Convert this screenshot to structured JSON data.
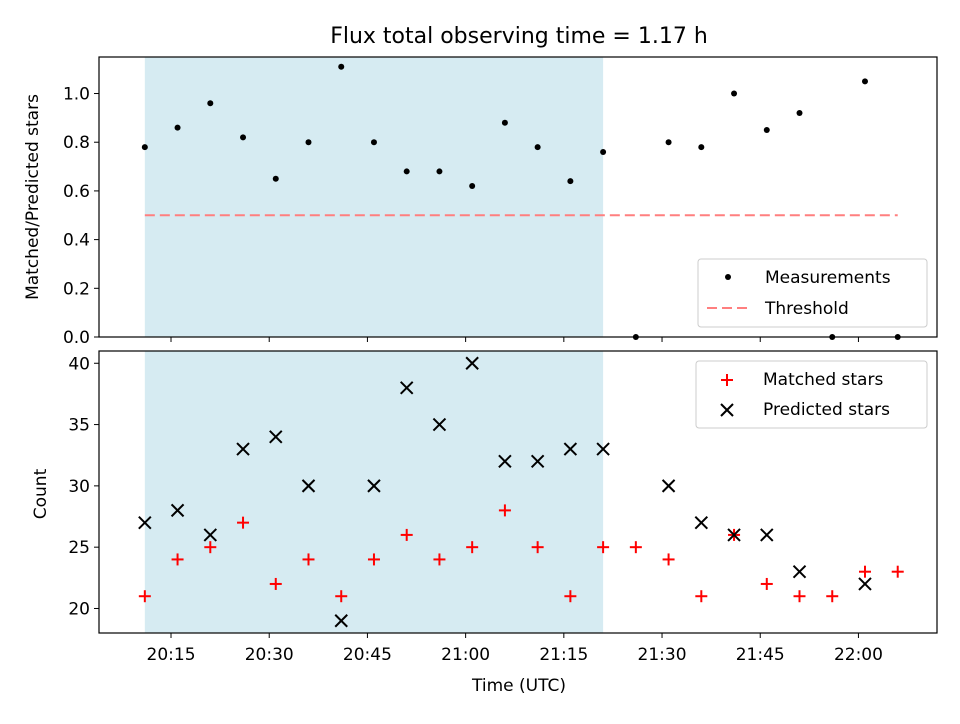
{
  "title": "Flux total observing time = 1.17 h",
  "colors": {
    "shade": "#add8e6",
    "measurement": "#000000",
    "threshold": "#ff7f7f",
    "matched": "#ff0000",
    "predicted": "#000000"
  },
  "chart_data": [
    {
      "type": "scatter",
      "title": "Flux total observing time = 1.17 h",
      "xlabel": "",
      "ylabel": "Matched/Predicted stars",
      "xlim": [
        "20:04",
        "22:12"
      ],
      "ylim": [
        0,
        1.15
      ],
      "yticks": [
        0.0,
        0.2,
        0.4,
        0.6,
        0.8,
        1.0
      ],
      "ytick_labels": [
        "0.0",
        "0.2",
        "0.4",
        "0.6",
        "0.8",
        "1.0"
      ],
      "shaded_span": [
        "20:11",
        "21:21"
      ],
      "legend_position": "lower right",
      "legend": [
        "Measurements",
        "Threshold"
      ],
      "series": [
        {
          "name": "Measurements",
          "marker": "dot",
          "x": [
            "20:11",
            "20:16",
            "20:21",
            "20:26",
            "20:31",
            "20:36",
            "20:41",
            "20:46",
            "20:51",
            "20:56",
            "21:01",
            "21:06",
            "21:11",
            "21:16",
            "21:21",
            "21:26",
            "21:31",
            "21:36",
            "21:41",
            "21:46",
            "21:51",
            "21:56",
            "22:01",
            "22:06"
          ],
          "y": [
            0.78,
            0.86,
            0.96,
            0.82,
            0.65,
            0.8,
            1.11,
            0.8,
            0.68,
            0.68,
            0.62,
            0.88,
            0.78,
            0.64,
            0.76,
            0.0,
            0.8,
            0.78,
            1.0,
            0.85,
            0.92,
            0.0,
            1.05,
            0.0
          ]
        },
        {
          "name": "Threshold",
          "marker": "dashed-line",
          "x": [
            "20:11",
            "22:06"
          ],
          "y": [
            0.5,
            0.5
          ]
        }
      ]
    },
    {
      "type": "scatter",
      "title": "",
      "xlabel": "Time (UTC)",
      "ylabel": "Count",
      "xlim": [
        "20:04",
        "22:12"
      ],
      "ylim": [
        18,
        41
      ],
      "xticks": [
        "20:15",
        "20:30",
        "20:45",
        "21:00",
        "21:15",
        "21:30",
        "21:45",
        "22:00"
      ],
      "yticks": [
        20,
        25,
        30,
        35,
        40
      ],
      "ytick_labels": [
        "20",
        "25",
        "30",
        "35",
        "40"
      ],
      "shaded_span": [
        "20:11",
        "21:21"
      ],
      "legend_position": "upper right",
      "legend": [
        "Matched stars",
        "Predicted stars"
      ],
      "series": [
        {
          "name": "Matched stars",
          "marker": "plus",
          "x": [
            "20:11",
            "20:16",
            "20:21",
            "20:26",
            "20:31",
            "20:36",
            "20:41",
            "20:46",
            "20:51",
            "20:56",
            "21:01",
            "21:06",
            "21:11",
            "21:16",
            "21:21",
            "21:26",
            "21:31",
            "21:36",
            "21:41",
            "21:46",
            "21:51",
            "21:56",
            "22:01",
            "22:06"
          ],
          "y": [
            21,
            24,
            25,
            27,
            22,
            24,
            21,
            24,
            26,
            24,
            25,
            28,
            25,
            21,
            25,
            25,
            24,
            21,
            26,
            22,
            21,
            21,
            23,
            23
          ]
        },
        {
          "name": "Predicted stars",
          "marker": "x",
          "x": [
            "20:11",
            "20:16",
            "20:21",
            "20:26",
            "20:31",
            "20:36",
            "20:41",
            "20:46",
            "20:51",
            "20:56",
            "21:01",
            "21:06",
            "21:11",
            "21:16",
            "21:21",
            "21:31",
            "21:36",
            "21:41",
            "21:46",
            "21:51",
            "22:01"
          ],
          "y": [
            27,
            28,
            26,
            33,
            34,
            30,
            19,
            30,
            38,
            35,
            40,
            32,
            32,
            33,
            33,
            30,
            27,
            26,
            26,
            23,
            22
          ]
        }
      ]
    }
  ]
}
